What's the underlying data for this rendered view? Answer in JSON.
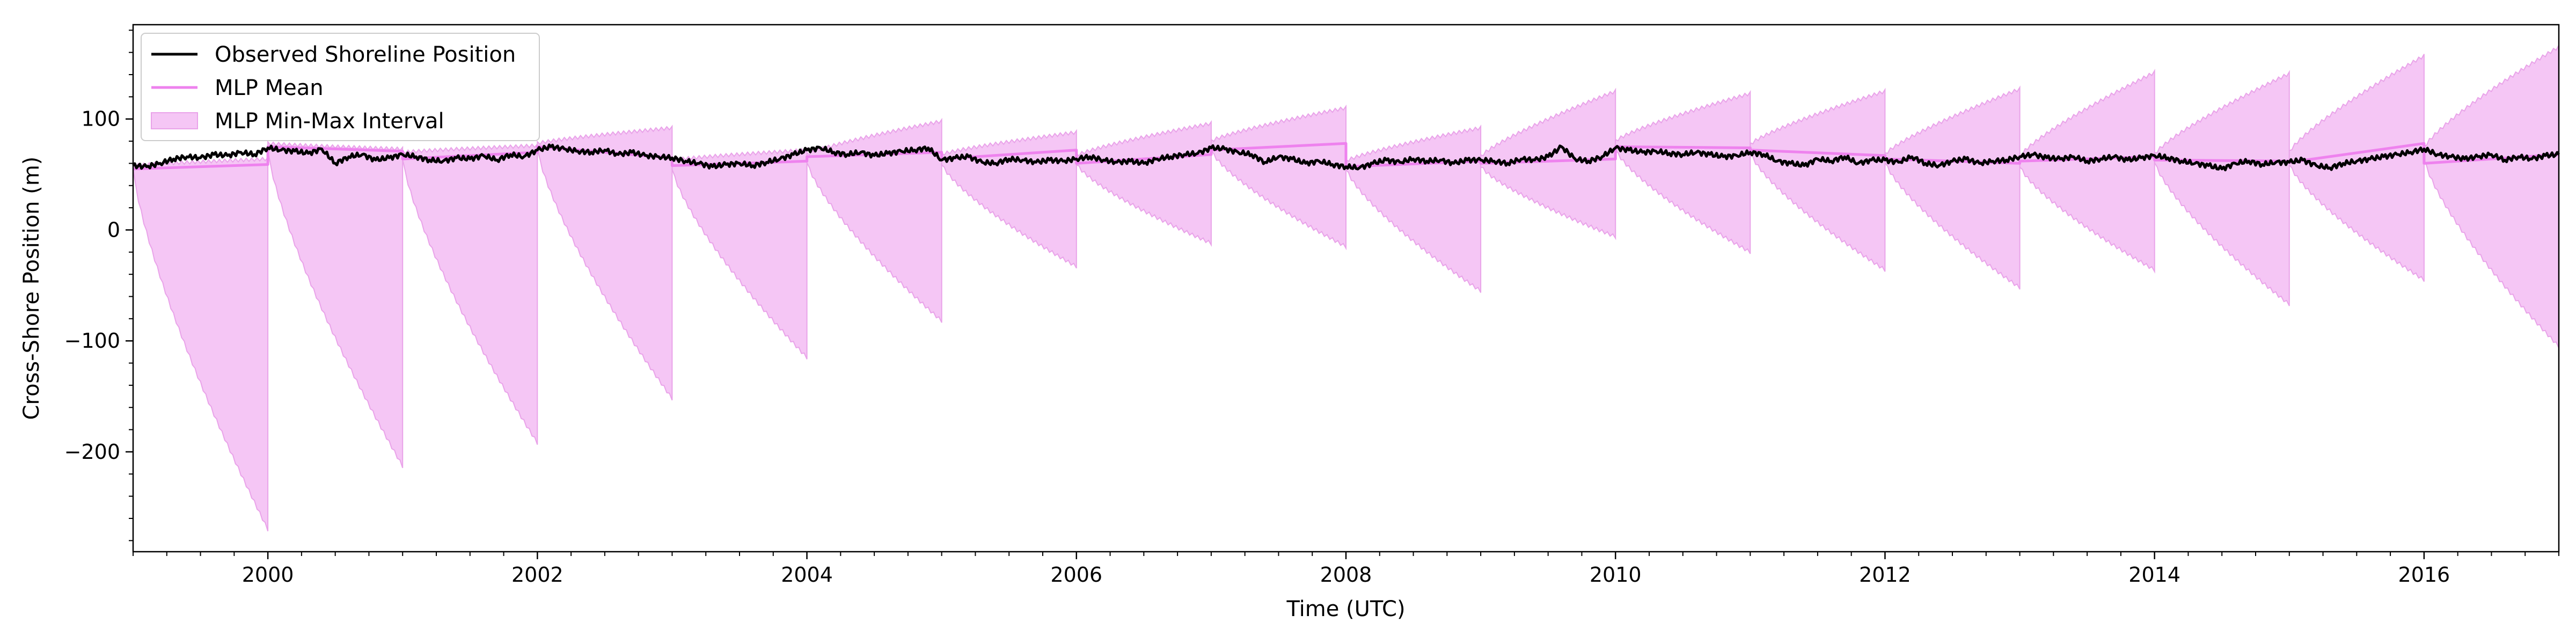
{
  "chart_data": {
    "type": "line",
    "title": "",
    "xlabel": "Time (UTC)",
    "ylabel": "Cross-Shore Position (m)",
    "xlim": [
      1999.0,
      2017.0
    ],
    "ylim": [
      -290,
      185
    ],
    "x_ticks": [
      2000,
      2002,
      2004,
      2006,
      2008,
      2010,
      2012,
      2014,
      2016
    ],
    "x_tick_labels": [
      "2000",
      "2002",
      "2004",
      "2006",
      "2008",
      "2010",
      "2012",
      "2014",
      "2016"
    ],
    "y_ticks": [
      -200,
      -100,
      0,
      100
    ],
    "y_tick_labels": [
      "−200",
      "−100",
      "0",
      "100"
    ],
    "grid": false,
    "legend_position": "top-left",
    "colors": {
      "observed": "#000000",
      "mean": "#ee82ee",
      "interval_fill": "#f5c6f5",
      "interval_edge": "#e9a3e9"
    },
    "legend": [
      {
        "label": "Observed Shoreline Position",
        "kind": "line",
        "color": "#000000"
      },
      {
        "label": "MLP Mean",
        "kind": "line",
        "color": "#ee82ee"
      },
      {
        "label": "MLP Min-Max Interval",
        "kind": "patch",
        "color": "#f5c6f5"
      }
    ],
    "observed": {
      "name": "Observed Shoreline Position",
      "x": [
        1999.0,
        1999.1,
        1999.2,
        1999.3,
        1999.4,
        1999.5,
        1999.6,
        1999.7,
        1999.8,
        1999.9,
        2000.0,
        2000.1,
        2000.2,
        2000.3,
        2000.4,
        2000.5,
        2000.6,
        2000.7,
        2000.8,
        2000.9,
        2001.0,
        2001.1,
        2001.2,
        2001.3,
        2001.4,
        2001.5,
        2001.6,
        2001.7,
        2001.8,
        2001.9,
        2002.0,
        2002.1,
        2002.2,
        2002.3,
        2002.4,
        2002.5,
        2002.6,
        2002.7,
        2002.8,
        2002.9,
        2003.0,
        2003.1,
        2003.2,
        2003.3,
        2003.4,
        2003.5,
        2003.6,
        2003.7,
        2003.8,
        2003.9,
        2004.0,
        2004.1,
        2004.2,
        2004.3,
        2004.4,
        2004.5,
        2004.6,
        2004.7,
        2004.8,
        2004.9,
        2005.0,
        2005.1,
        2005.2,
        2005.3,
        2005.4,
        2005.5,
        2005.6,
        2005.7,
        2005.8,
        2005.9,
        2006.0,
        2006.1,
        2006.2,
        2006.3,
        2006.4,
        2006.5,
        2006.6,
        2006.7,
        2006.8,
        2006.9,
        2007.0,
        2007.1,
        2007.2,
        2007.3,
        2007.4,
        2007.5,
        2007.6,
        2007.7,
        2007.8,
        2007.9,
        2008.0,
        2008.1,
        2008.2,
        2008.3,
        2008.4,
        2008.5,
        2008.6,
        2008.7,
        2008.8,
        2008.9,
        2009.0,
        2009.1,
        2009.2,
        2009.3,
        2009.4,
        2009.5,
        2009.6,
        2009.7,
        2009.8,
        2009.9,
        2010.0,
        2010.1,
        2010.2,
        2010.3,
        2010.4,
        2010.5,
        2010.6,
        2010.7,
        2010.8,
        2010.9,
        2011.0,
        2011.1,
        2011.2,
        2011.3,
        2011.4,
        2011.5,
        2011.6,
        2011.7,
        2011.8,
        2011.9,
        2012.0,
        2012.1,
        2012.2,
        2012.3,
        2012.4,
        2012.5,
        2012.6,
        2012.7,
        2012.8,
        2012.9,
        2013.0,
        2013.1,
        2013.2,
        2013.3,
        2013.4,
        2013.5,
        2013.6,
        2013.7,
        2013.8,
        2013.9,
        2014.0,
        2014.1,
        2014.2,
        2014.3,
        2014.4,
        2014.5,
        2014.6,
        2014.7,
        2014.8,
        2014.9,
        2015.0,
        2015.1,
        2015.2,
        2015.3,
        2015.4,
        2015.5,
        2015.6,
        2015.7,
        2015.8,
        2015.9,
        2016.0,
        2016.1,
        2016.2,
        2016.3,
        2016.4,
        2016.5,
        2016.6,
        2016.7,
        2016.8,
        2016.9,
        2017.0
      ],
      "y": [
        58,
        57,
        60,
        64,
        66,
        65,
        68,
        67,
        70,
        68,
        74,
        72,
        71,
        69,
        73,
        60,
        66,
        68,
        63,
        65,
        68,
        66,
        63,
        62,
        65,
        64,
        67,
        63,
        68,
        66,
        72,
        75,
        73,
        71,
        70,
        72,
        68,
        70,
        67,
        66,
        65,
        62,
        60,
        57,
        59,
        60,
        58,
        61,
        64,
        68,
        72,
        74,
        70,
        68,
        70,
        67,
        69,
        71,
        72,
        74,
        63,
        65,
        66,
        61,
        60,
        64,
        63,
        61,
        63,
        62,
        64,
        66,
        63,
        61,
        62,
        60,
        64,
        66,
        68,
        69,
        74,
        73,
        70,
        68,
        61,
        66,
        64,
        60,
        62,
        59,
        57,
        56,
        60,
        63,
        61,
        64,
        62,
        63,
        60,
        63,
        63,
        62,
        60,
        64,
        63,
        66,
        75,
        64,
        62,
        66,
        74,
        72,
        70,
        71,
        69,
        68,
        70,
        68,
        66,
        67,
        70,
        68,
        62,
        60,
        58,
        64,
        62,
        66,
        60,
        63,
        63,
        61,
        66,
        60,
        58,
        62,
        64,
        60,
        62,
        63,
        66,
        68,
        65,
        64,
        66,
        62,
        64,
        66,
        63,
        65,
        67,
        65,
        62,
        60,
        58,
        55,
        60,
        62,
        59,
        61,
        61,
        63,
        58,
        56,
        60,
        62,
        64,
        66,
        68,
        70,
        73,
        68,
        66,
        64,
        66,
        68,
        63,
        66,
        64,
        67,
        68
      ]
    },
    "mean": {
      "name": "MLP Mean",
      "x": [
        1999.0,
        2000.0,
        2000.0,
        2001.0,
        2001.0,
        2002.0,
        2002.0,
        2003.0,
        2003.0,
        2004.0,
        2004.0,
        2005.0,
        2005.0,
        2006.0,
        2006.0,
        2007.0,
        2007.0,
        2008.0,
        2008.0,
        2009.0,
        2009.0,
        2010.0,
        2010.0,
        2011.0,
        2011.0,
        2012.0,
        2012.0,
        2013.0,
        2013.0,
        2014.0,
        2014.0,
        2015.0,
        2015.0,
        2016.0,
        2016.0,
        2017.0
      ],
      "y": [
        55,
        59,
        75,
        71,
        64,
        70,
        75,
        65,
        58,
        62,
        66,
        70,
        64,
        72,
        60,
        68,
        72,
        78,
        57,
        62,
        60,
        64,
        75,
        74,
        72,
        67,
        64,
        60,
        62,
        66,
        63,
        62,
        61,
        78,
        60,
        68
      ]
    },
    "interval": {
      "name": "MLP Min-Max Interval",
      "segments": [
        {
          "start": 1999.0,
          "end": 2000.0,
          "upper_start": 58,
          "upper_end": 64,
          "lower_start": 56,
          "lower_end": -270
        },
        {
          "start": 2000.0,
          "end": 2001.0,
          "upper_start": 78,
          "upper_end": 73,
          "lower_start": 73,
          "lower_end": -213
        },
        {
          "start": 2001.0,
          "end": 2002.0,
          "upper_start": 70,
          "upper_end": 76,
          "lower_start": 65,
          "lower_end": -192
        },
        {
          "start": 2002.0,
          "end": 2003.0,
          "upper_start": 78,
          "upper_end": 92,
          "lower_start": 74,
          "lower_end": -152
        },
        {
          "start": 2003.0,
          "end": 2004.0,
          "upper_start": 63,
          "upper_end": 72,
          "lower_start": 56,
          "lower_end": -115
        },
        {
          "start": 2004.0,
          "end": 2005.0,
          "upper_start": 68,
          "upper_end": 98,
          "lower_start": 62,
          "lower_end": -82
        },
        {
          "start": 2005.0,
          "end": 2006.0,
          "upper_start": 68,
          "upper_end": 88,
          "lower_start": 60,
          "lower_end": -33
        },
        {
          "start": 2006.0,
          "end": 2007.0,
          "upper_start": 67,
          "upper_end": 96,
          "lower_start": 60,
          "lower_end": -12
        },
        {
          "start": 2007.0,
          "end": 2008.0,
          "upper_start": 80,
          "upper_end": 110,
          "lower_start": 72,
          "lower_end": -15
        },
        {
          "start": 2008.0,
          "end": 2009.0,
          "upper_start": 62,
          "upper_end": 92,
          "lower_start": 56,
          "lower_end": -55
        },
        {
          "start": 2009.0,
          "end": 2010.0,
          "upper_start": 66,
          "upper_end": 125,
          "lower_start": 58,
          "lower_end": -6
        },
        {
          "start": 2010.0,
          "end": 2011.0,
          "upper_start": 80,
          "upper_end": 123,
          "lower_start": 73,
          "lower_end": -20
        },
        {
          "start": 2011.0,
          "end": 2012.0,
          "upper_start": 77,
          "upper_end": 125,
          "lower_start": 70,
          "lower_end": -36
        },
        {
          "start": 2012.0,
          "end": 2013.0,
          "upper_start": 68,
          "upper_end": 127,
          "lower_start": 62,
          "lower_end": -52
        },
        {
          "start": 2013.0,
          "end": 2014.0,
          "upper_start": 66,
          "upper_end": 142,
          "lower_start": 58,
          "lower_end": -36
        },
        {
          "start": 2014.0,
          "end": 2015.0,
          "upper_start": 68,
          "upper_end": 141,
          "lower_start": 62,
          "lower_end": -67
        },
        {
          "start": 2015.0,
          "end": 2016.0,
          "upper_start": 70,
          "upper_end": 157,
          "lower_start": 60,
          "lower_end": -45
        },
        {
          "start": 2016.0,
          "end": 2017.0,
          "upper_start": 74,
          "upper_end": 165,
          "lower_start": 65,
          "lower_end": -105
        }
      ]
    }
  }
}
